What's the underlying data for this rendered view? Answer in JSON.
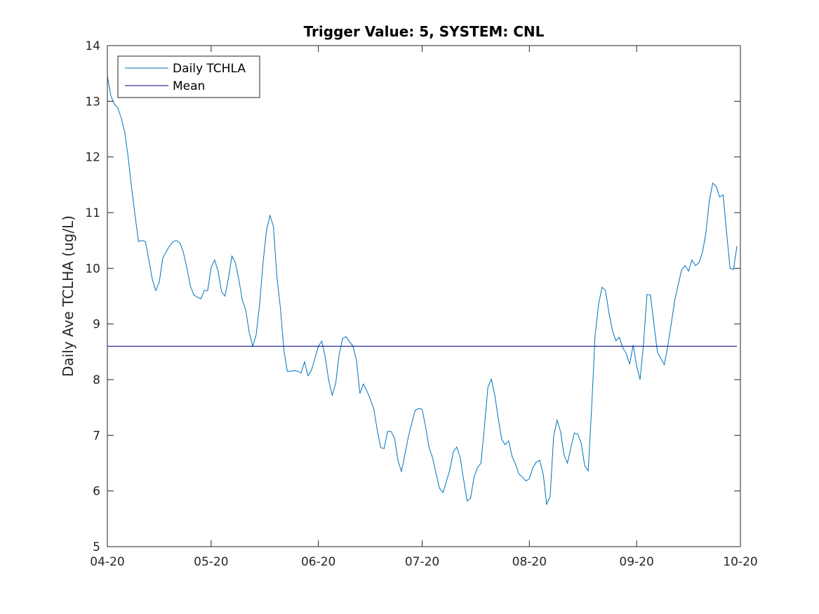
{
  "chart_data": {
    "type": "line",
    "title": "Trigger Value: 5, SYSTEM: CNL",
    "xlabel": "",
    "ylabel": "Daily Ave TCLHA (ug/L)",
    "xlim": [
      "2020-04-20",
      "2020-10-20"
    ],
    "ylim": [
      5,
      14
    ],
    "x_ticks": [
      "04-20",
      "05-20",
      "06-20",
      "07-20",
      "08-20",
      "09-20",
      "10-20"
    ],
    "y_ticks": [
      5,
      6,
      7,
      8,
      9,
      10,
      11,
      12,
      13,
      14
    ],
    "grid": false,
    "legend_position": "top-left",
    "colors": {
      "daily": "#0072BD",
      "mean": "#000080",
      "axis": "#262626"
    },
    "series": [
      {
        "name": "Daily TCHLA",
        "start_date": "2020-04-20",
        "values": [
          13.45,
          13.1,
          12.95,
          12.88,
          12.7,
          12.45,
          12.0,
          11.45,
          10.95,
          10.48,
          10.5,
          10.48,
          10.15,
          9.8,
          9.6,
          9.75,
          10.18,
          10.3,
          10.4,
          10.48,
          10.5,
          10.45,
          10.28,
          10.0,
          9.68,
          9.52,
          9.48,
          9.45,
          9.6,
          9.6,
          10.02,
          10.15,
          9.95,
          9.58,
          9.5,
          9.82,
          10.22,
          10.1,
          9.8,
          9.43,
          9.25,
          8.85,
          8.6,
          8.8,
          9.35,
          10.1,
          10.68,
          10.95,
          10.75,
          9.85,
          9.3,
          8.55,
          8.15,
          8.15,
          8.16,
          8.15,
          8.12,
          8.32,
          8.07,
          8.17,
          8.38,
          8.6,
          8.69,
          8.4,
          7.98,
          7.72,
          7.93,
          8.45,
          8.74,
          8.77,
          8.68,
          8.6,
          8.35,
          7.75,
          7.92,
          7.8,
          7.65,
          7.48,
          7.1,
          6.78,
          6.76,
          7.07,
          7.07,
          6.95,
          6.55,
          6.35,
          6.65,
          6.97,
          7.22,
          7.45,
          7.48,
          7.47,
          7.15,
          6.78,
          6.6,
          6.32,
          6.05,
          5.97,
          6.17,
          6.38,
          6.7,
          6.79,
          6.6,
          6.2,
          5.82,
          5.87,
          6.25,
          6.42,
          6.5,
          7.15,
          7.86,
          8.01,
          7.72,
          7.3,
          6.93,
          6.83,
          6.9,
          6.62,
          6.48,
          6.3,
          6.25,
          6.18,
          6.22,
          6.42,
          6.52,
          6.55,
          6.3,
          5.76,
          5.9,
          6.98,
          7.27,
          7.07,
          6.65,
          6.5,
          6.78,
          7.04,
          7.02,
          6.85,
          6.45,
          6.36,
          7.5,
          8.8,
          9.35,
          9.66,
          9.6,
          9.2,
          8.88,
          8.7,
          8.76,
          8.57,
          8.47,
          8.28,
          8.62,
          8.25,
          8.0,
          8.65,
          9.53,
          9.52,
          9.0,
          8.5,
          8.38,
          8.27,
          8.6,
          9.0,
          9.42,
          9.7,
          9.97,
          10.05,
          9.95,
          10.15,
          10.05,
          10.1,
          10.28,
          10.62,
          11.2,
          11.53,
          11.47,
          11.28,
          11.32,
          10.65,
          10.0,
          9.98,
          10.4
        ]
      },
      {
        "name": "Mean",
        "values": [
          8.6,
          8.6
        ]
      }
    ]
  }
}
